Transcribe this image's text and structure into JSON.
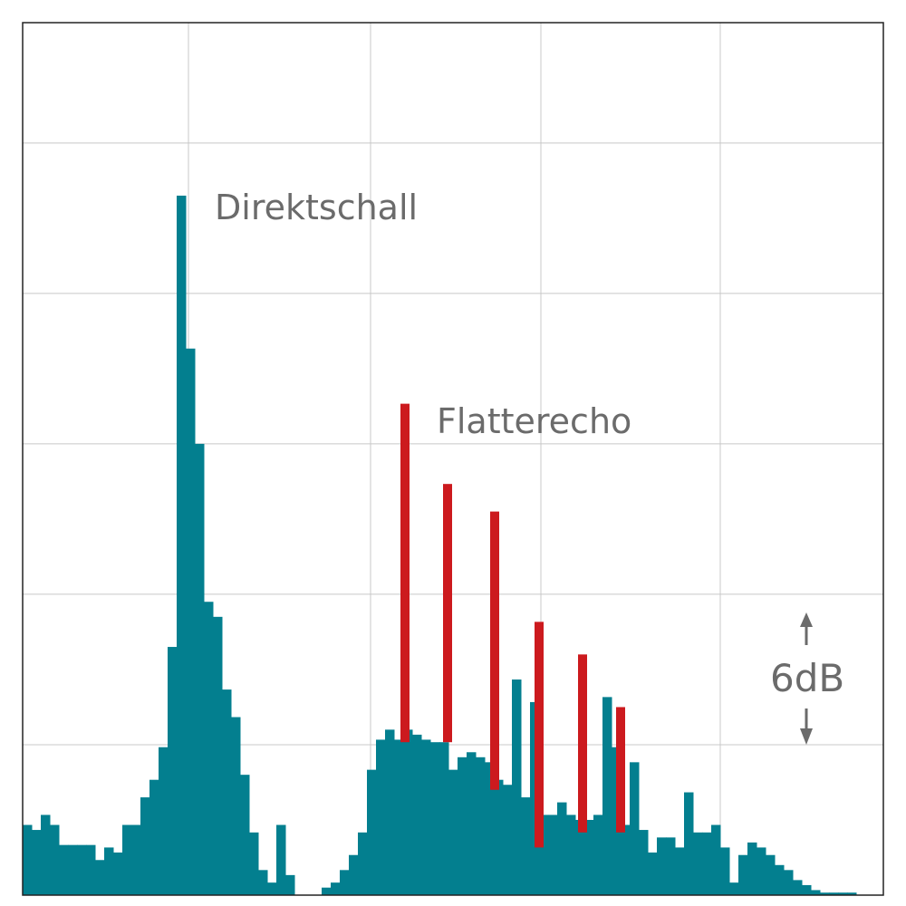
{
  "chart_data": {
    "type": "histogram",
    "annotations": [
      "Direktschall",
      "Flatterecho",
      "6dB"
    ],
    "bins": [
      0,
      10,
      20,
      30,
      40,
      50,
      60,
      70,
      80,
      90,
      100,
      110,
      120,
      130,
      140,
      150,
      160,
      170,
      180,
      190,
      200,
      210,
      220,
      230,
      240,
      250,
      260,
      270,
      280,
      290,
      300,
      310,
      320,
      330,
      340,
      350,
      360,
      370,
      380,
      390,
      400,
      410,
      420,
      430,
      440,
      450,
      460,
      470,
      480,
      490,
      500,
      510,
      520,
      530,
      540,
      550,
      560,
      570,
      580,
      590,
      600,
      610,
      620,
      630,
      640,
      650,
      660,
      670,
      680,
      690,
      700,
      710,
      720,
      730,
      740,
      750,
      760,
      770,
      780,
      790,
      800,
      810,
      820,
      830,
      840,
      850,
      860,
      870,
      880,
      890,
      900,
      910,
      920,
      930,
      940,
      950
    ],
    "values": [
      2.8,
      2.6,
      3.2,
      2.8,
      2.0,
      2.0,
      2.0,
      2.0,
      1.4,
      1.9,
      1.7,
      2.8,
      2.8,
      3.9,
      4.6,
      5.9,
      9.9,
      27.9,
      21.8,
      18.0,
      11.7,
      11.1,
      8.2,
      7.1,
      4.8,
      2.5,
      1.0,
      0.5,
      2.8,
      0.8,
      0,
      0,
      0,
      0.3,
      0.5,
      1.0,
      1.6,
      2.5,
      5.0,
      6.2,
      6.6,
      6.2,
      6.6,
      6.4,
      6.2,
      6.1,
      6.1,
      5.0,
      5.5,
      5.7,
      5.5,
      5.3,
      4.6,
      4.4,
      8.6,
      3.9,
      7.7,
      3.2,
      3.2,
      3.7,
      3.2,
      3.0,
      3.0,
      3.2,
      7.9,
      5.9,
      2.8,
      5.3,
      2.6,
      1.7,
      2.3,
      2.3,
      1.9,
      4.1,
      2.5,
      2.5,
      2.8,
      1.9,
      0.5,
      1.6,
      2.1,
      1.9,
      1.6,
      1.2,
      1.0,
      0.6,
      0.4,
      0.2,
      0.1,
      0.1,
      0.1,
      0.1,
      0,
      0,
      0
    ],
    "color": "#037f8f",
    "echoes": {
      "x": [
        422,
        469,
        521,
        570,
        618,
        660
      ],
      "values": [
        19.6,
        16.4,
        15.3,
        10.9,
        9.6,
        7.5
      ],
      "base": [
        6.1,
        6.1,
        4.2,
        1.9,
        2.5,
        2.5
      ],
      "color": "#cc1a1e"
    },
    "xlim": [
      0,
      950
    ],
    "xticks": [
      183,
      384,
      572,
      770
    ],
    "ylim": [
      0,
      34.8
    ],
    "yticks": [
      6,
      12,
      18,
      24,
      30
    ],
    "grid": true
  }
}
